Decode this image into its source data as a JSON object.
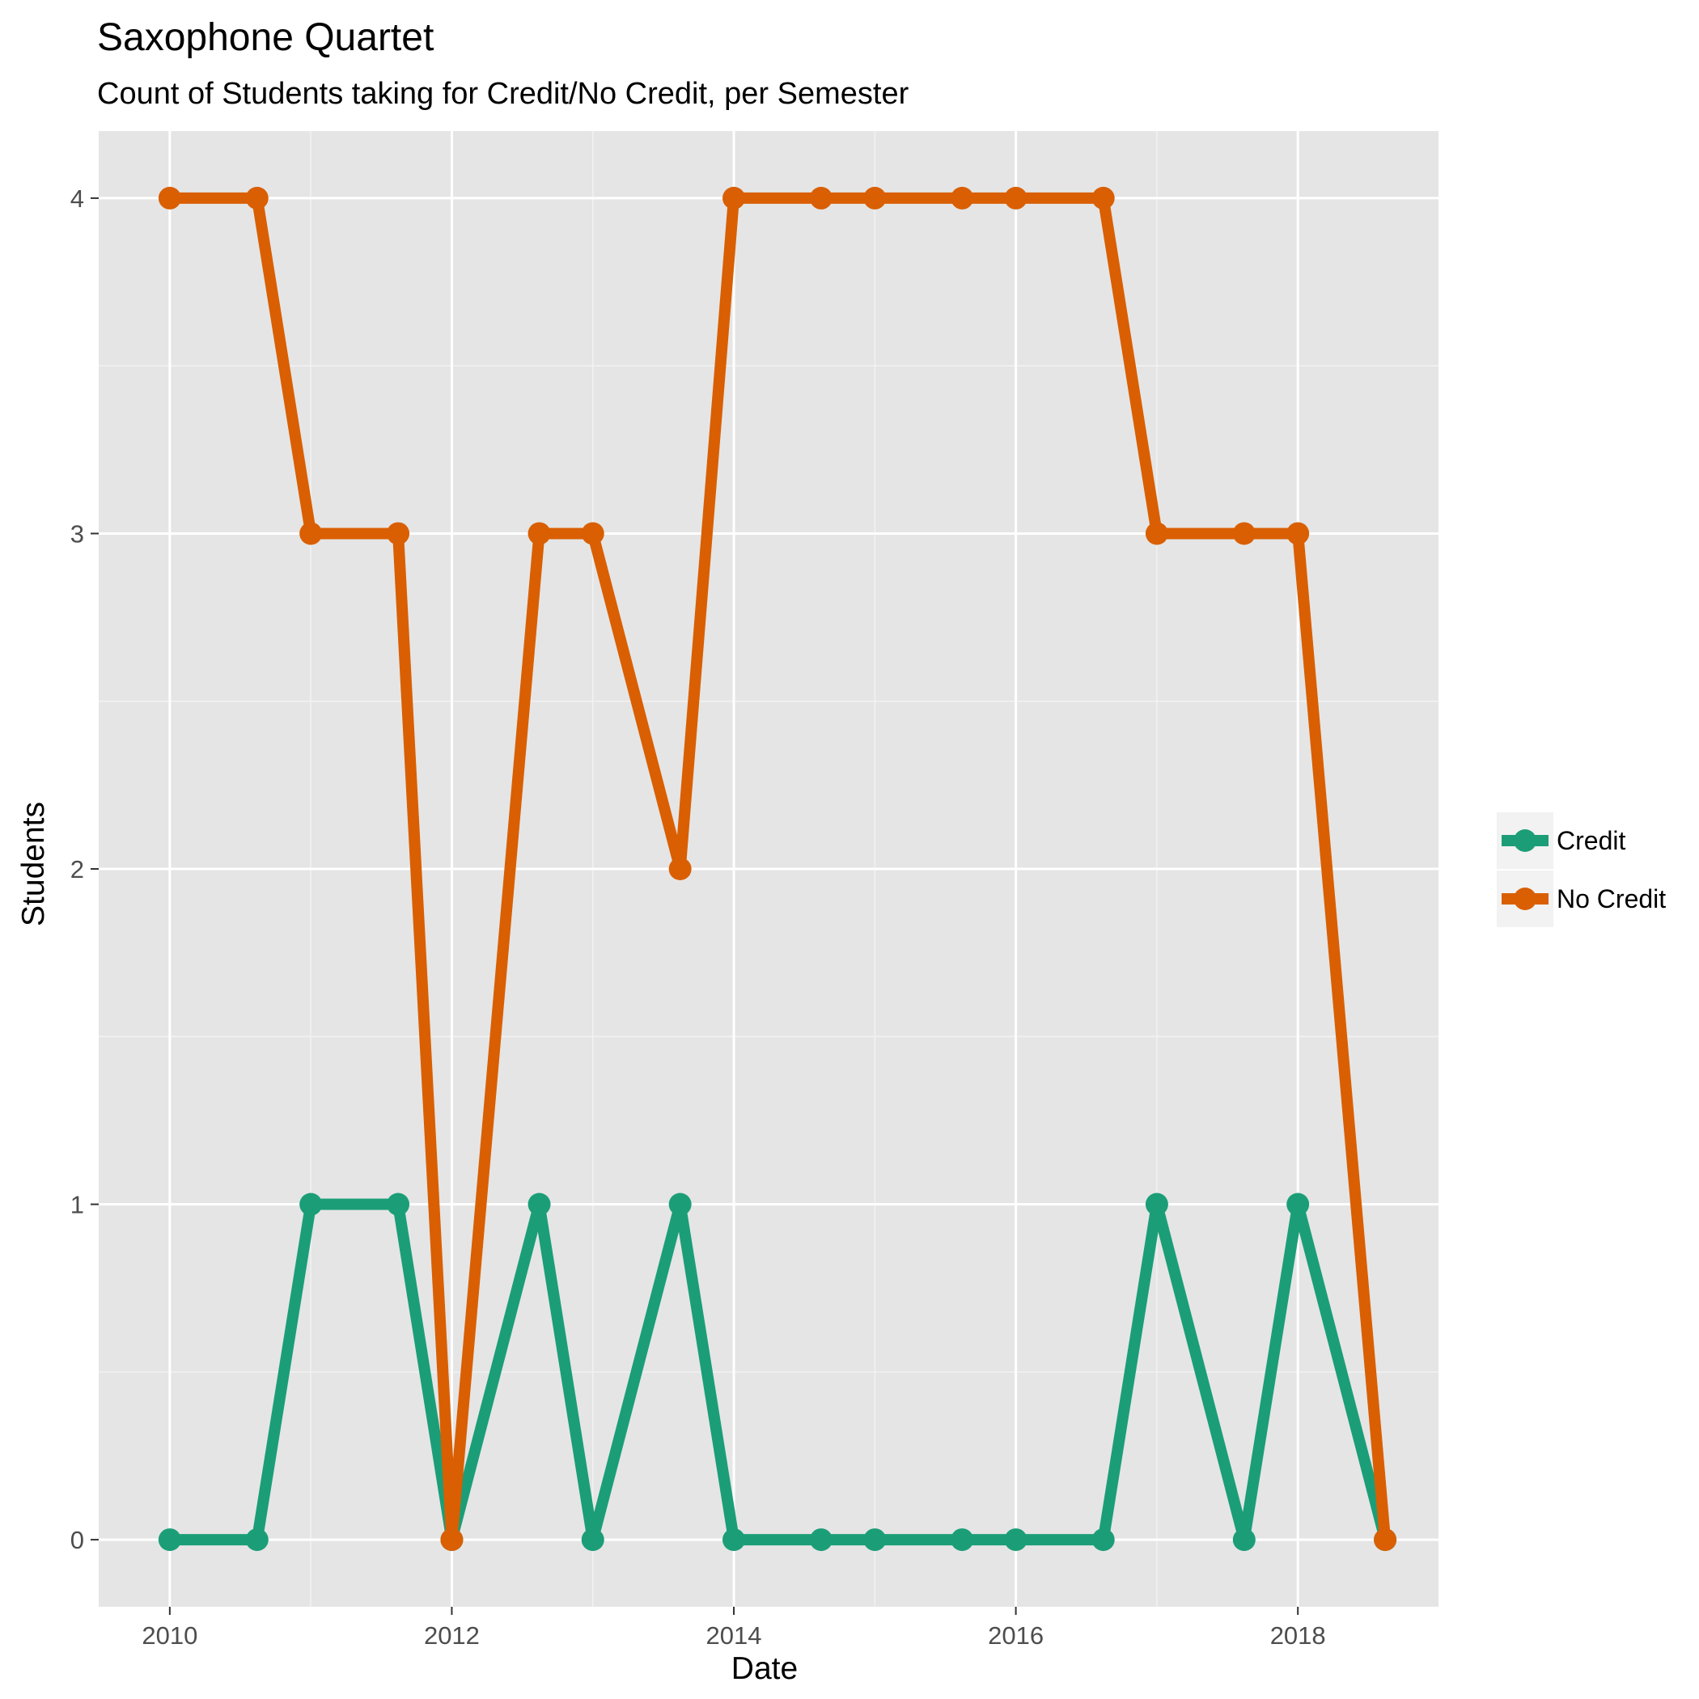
{
  "chart_data": {
    "type": "line",
    "title": "Saxophone Quartet",
    "subtitle": "Count of Students taking for Credit/No Credit, per Semester",
    "xlabel": "Date",
    "ylabel": "Students",
    "x_ticks": [
      "2010",
      "2012",
      "2014",
      "2016",
      "2018"
    ],
    "y_ticks": [
      "0",
      "1",
      "2",
      "3",
      "4"
    ],
    "xlim": [
      "2009-07-01",
      "2018-12-31"
    ],
    "ylim": [
      -0.2,
      4.2
    ],
    "x": [
      "2010-01-01",
      "2010-08-15",
      "2011-01-01",
      "2011-08-15",
      "2012-01-01",
      "2012-08-15",
      "2013-01-01",
      "2013-08-15",
      "2014-01-01",
      "2014-08-15",
      "2015-01-01",
      "2015-08-15",
      "2016-01-01",
      "2016-08-15",
      "2017-01-01",
      "2017-08-15",
      "2018-01-01",
      "2018-08-15"
    ],
    "series": [
      {
        "name": "Credit",
        "color": "#1b9e77",
        "values": [
          0,
          0,
          1,
          1,
          0,
          1,
          0,
          1,
          0,
          0,
          0,
          0,
          0,
          0,
          1,
          0,
          1,
          0
        ]
      },
      {
        "name": "No Credit",
        "color": "#d95f02",
        "values": [
          4,
          4,
          3,
          3,
          0,
          3,
          3,
          2,
          4,
          4,
          4,
          4,
          4,
          4,
          3,
          3,
          3,
          0
        ]
      }
    ],
    "grid": true,
    "panel_background": "#e5e5e5",
    "legend_position": "right"
  }
}
